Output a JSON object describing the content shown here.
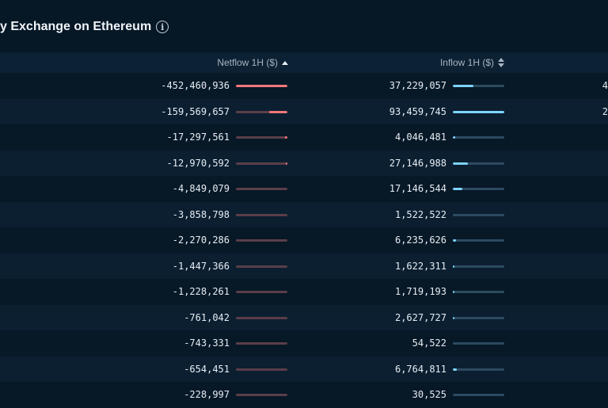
{
  "title": "y Exchange on Ethereum",
  "columns": {
    "netflow": "Netflow 1H ($)",
    "inflow": "Inflow 1H ($)"
  },
  "rows": [
    {
      "netflow": "-452,460,936",
      "netflow_fill": 1.0,
      "inflow": "37,229,057",
      "inflow_fill": 0.4,
      "edge": "4"
    },
    {
      "netflow": "-159,569,657",
      "netflow_fill": 0.35,
      "inflow": "93,459,745",
      "inflow_fill": 1.0,
      "edge": "2"
    },
    {
      "netflow": "-17,297,561",
      "netflow_fill": 0.04,
      "inflow": "4,046,481",
      "inflow_fill": 0.05,
      "edge": ""
    },
    {
      "netflow": "-12,970,592",
      "netflow_fill": 0.03,
      "inflow": "27,146,988",
      "inflow_fill": 0.29,
      "edge": ""
    },
    {
      "netflow": "-4,849,079",
      "netflow_fill": 0.0,
      "inflow": "17,146,544",
      "inflow_fill": 0.18,
      "edge": ""
    },
    {
      "netflow": "-3,858,798",
      "netflow_fill": 0.0,
      "inflow": "1,522,522",
      "inflow_fill": 0.0,
      "edge": ""
    },
    {
      "netflow": "-2,270,286",
      "netflow_fill": 0.0,
      "inflow": "6,235,626",
      "inflow_fill": 0.06,
      "edge": ""
    },
    {
      "netflow": "-1,447,366",
      "netflow_fill": 0.0,
      "inflow": "1,622,311",
      "inflow_fill": 0.02,
      "edge": ""
    },
    {
      "netflow": "-1,228,261",
      "netflow_fill": 0.0,
      "inflow": "1,719,193",
      "inflow_fill": 0.02,
      "edge": ""
    },
    {
      "netflow": "-761,042",
      "netflow_fill": 0.0,
      "inflow": "2,627,727",
      "inflow_fill": 0.03,
      "edge": ""
    },
    {
      "netflow": "-743,331",
      "netflow_fill": 0.0,
      "inflow": "54,522",
      "inflow_fill": 0.0,
      "edge": ""
    },
    {
      "netflow": "-654,451",
      "netflow_fill": 0.0,
      "inflow": "6,764,811",
      "inflow_fill": 0.07,
      "edge": ""
    },
    {
      "netflow": "-228,997",
      "netflow_fill": 0.0,
      "inflow": "30,525",
      "inflow_fill": 0.0,
      "edge": ""
    }
  ],
  "colors": {
    "background": "#061726",
    "negative_bar": "#f2777a",
    "positive_bar": "#7dd3fc"
  },
  "icons": {
    "title_info": "info-icon",
    "netflow_sort": "sort-ascending-icon",
    "inflow_sort": "sort-icon"
  }
}
